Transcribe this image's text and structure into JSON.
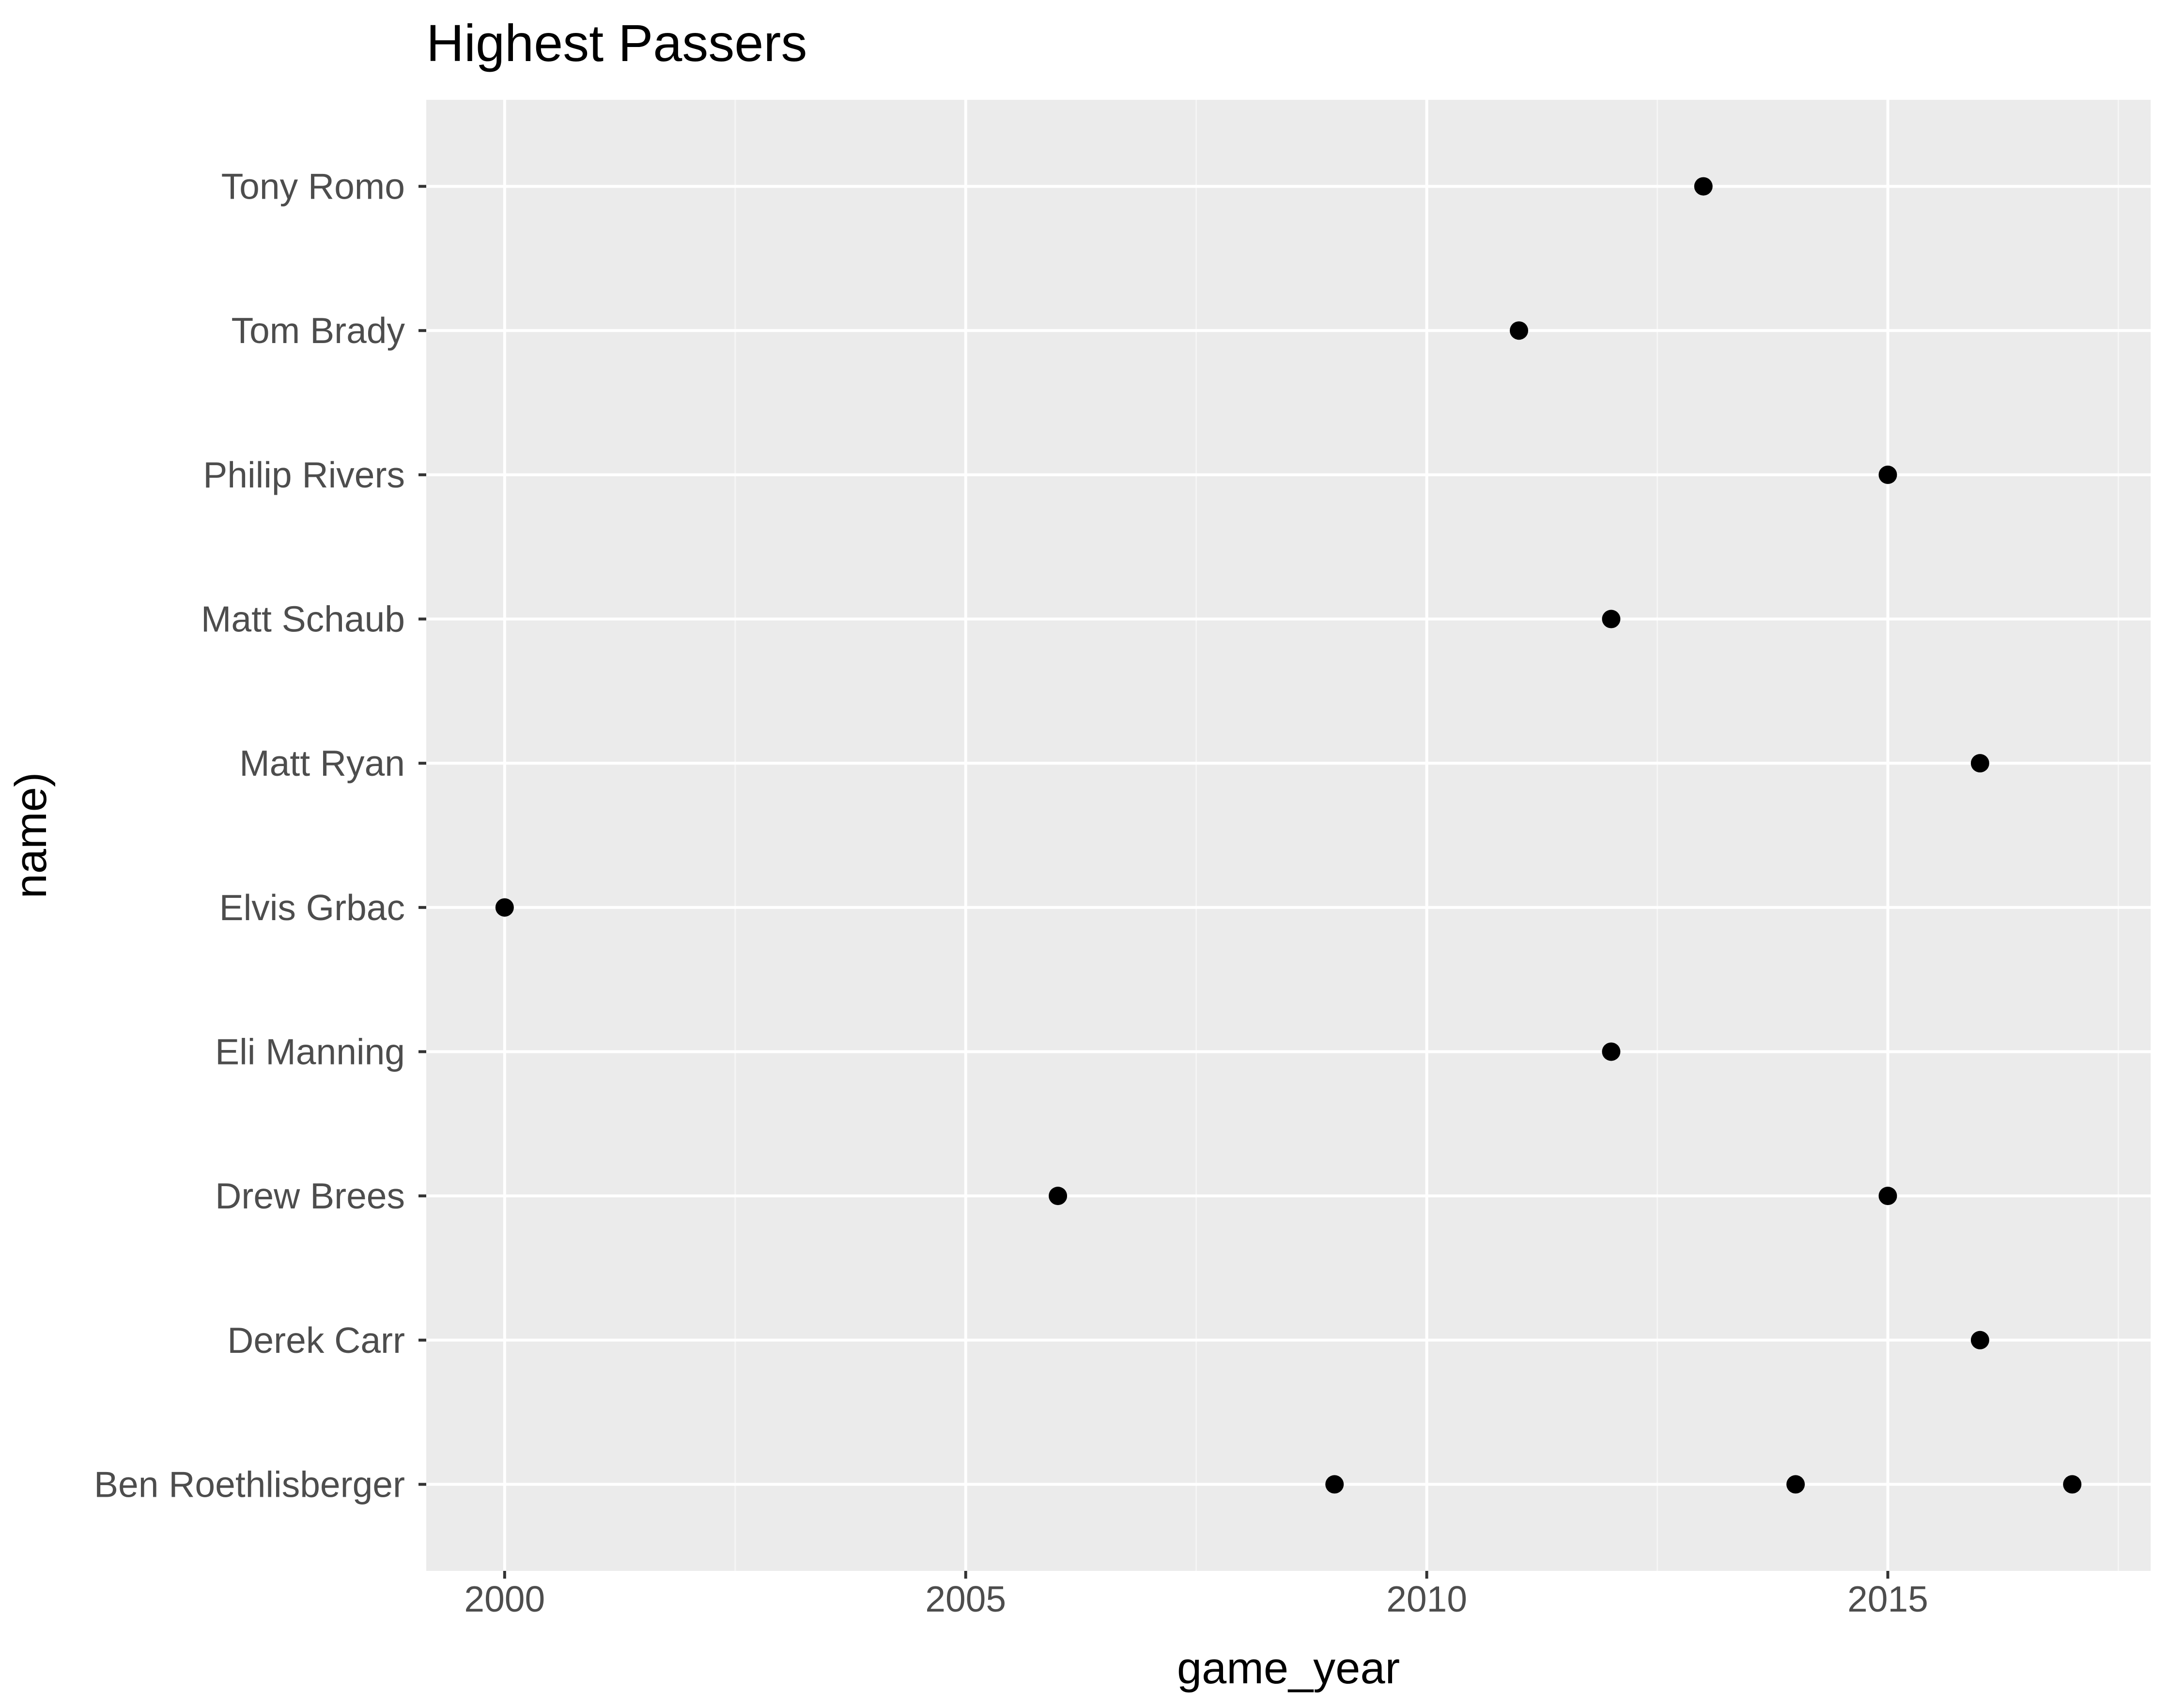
{
  "chart_data": {
    "type": "scatter",
    "title": "Highest Passers",
    "xlabel": "game_year",
    "ylabel": "name)",
    "xlim": [
      1999.15,
      2017.85
    ],
    "x_ticks": [
      2000,
      2005,
      2010,
      2015
    ],
    "x_tick_labels": [
      "2000",
      "2005",
      "2010",
      "2015"
    ],
    "categories": [
      "Ben Roethlisberger",
      "Derek Carr",
      "Drew Brees",
      "Eli Manning",
      "Elvis Grbac",
      "Matt Ryan",
      "Matt Schaub",
      "Philip Rivers",
      "Tom Brady",
      "Tony Romo"
    ],
    "points": [
      {
        "name": "Tony Romo",
        "game_year": 2013
      },
      {
        "name": "Tom Brady",
        "game_year": 2011
      },
      {
        "name": "Philip Rivers",
        "game_year": 2015
      },
      {
        "name": "Matt Schaub",
        "game_year": 2012
      },
      {
        "name": "Matt Ryan",
        "game_year": 2016
      },
      {
        "name": "Elvis Grbac",
        "game_year": 2000
      },
      {
        "name": "Eli Manning",
        "game_year": 2012
      },
      {
        "name": "Drew Brees",
        "game_year": 2006
      },
      {
        "name": "Drew Brees",
        "game_year": 2015
      },
      {
        "name": "Derek Carr",
        "game_year": 2016
      },
      {
        "name": "Ben Roethlisberger",
        "game_year": 2009
      },
      {
        "name": "Ben Roethlisberger",
        "game_year": 2014
      },
      {
        "name": "Ben Roethlisberger",
        "game_year": 2017
      }
    ],
    "grid": true,
    "legend": "none",
    "colors": {
      "panel_background": "#ebebeb",
      "grid_major": "#ffffff",
      "grid_minor": "#f5f5f5",
      "point": "#000000",
      "tick": "#333333",
      "tick_label": "#4d4d4d"
    }
  }
}
